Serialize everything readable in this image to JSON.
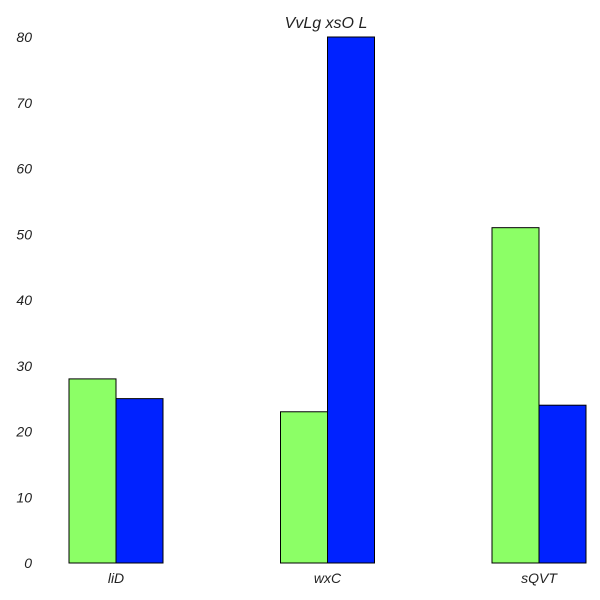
{
  "chart_data": {
    "type": "bar",
    "title": "VvLg xsO  L",
    "xlabel": "",
    "ylabel": "",
    "categories": [
      "liD",
      "wxC",
      "sQVT"
    ],
    "series": [
      {
        "values": [
          28,
          23,
          51
        ],
        "color": "#8cff66"
      },
      {
        "values": [
          25,
          80,
          24
        ],
        "color": "#0022ff"
      }
    ],
    "ylim": [
      0,
      80
    ],
    "yticks": [
      0,
      10,
      20,
      30,
      40,
      50,
      60,
      70,
      80
    ],
    "grid": false,
    "legend": "none"
  }
}
